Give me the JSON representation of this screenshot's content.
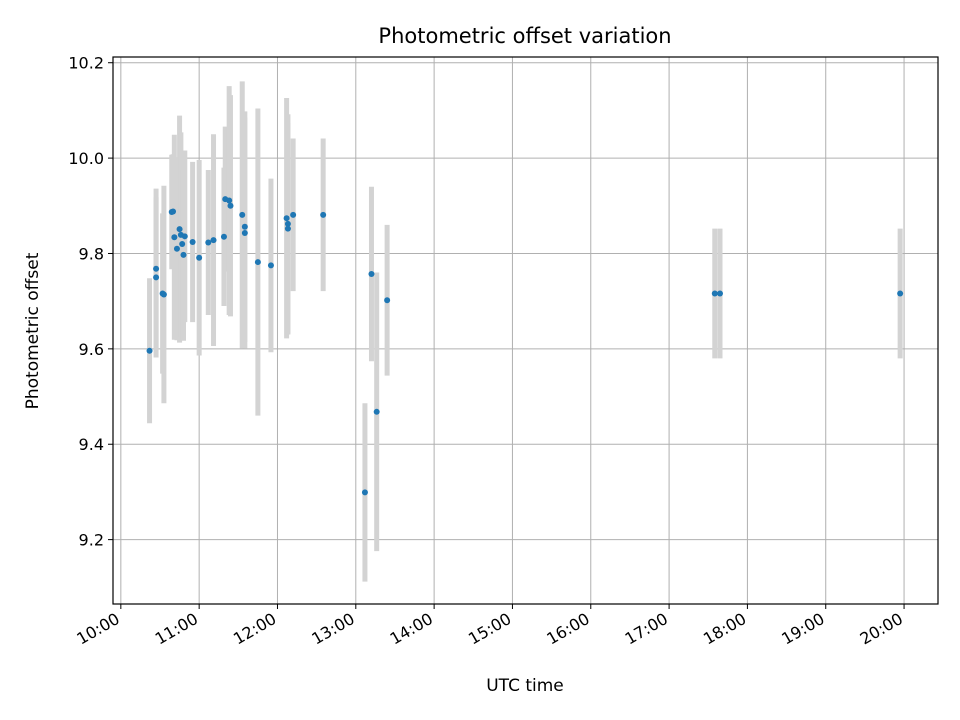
{
  "chart_data": {
    "type": "scatter",
    "title": "Photometric offset variation",
    "xlabel": "UTC time",
    "ylabel": "Photometric offset",
    "xlim": [
      "09:54",
      "20:26"
    ],
    "ylim": [
      9.065,
      10.212
    ],
    "grid": true,
    "x_ticks": [
      "10:00",
      "11:00",
      "12:00",
      "13:00",
      "14:00",
      "15:00",
      "16:00",
      "17:00",
      "18:00",
      "19:00",
      "20:00"
    ],
    "y_ticks": [
      "9.2",
      "9.4",
      "9.6",
      "9.8",
      "10.0",
      "10.2"
    ],
    "marker_color": "#1f77b4",
    "errorbar_color": "#d3d3d3",
    "points": [
      {
        "t": "10:22",
        "y": 9.596,
        "err": 0.152
      },
      {
        "t": "10:27",
        "y": 9.768,
        "err": 0.168
      },
      {
        "t": "10:27",
        "y": 9.75,
        "err": 0.168
      },
      {
        "t": "10:32",
        "y": 9.716,
        "err": 0.168
      },
      {
        "t": "10:33",
        "y": 9.714,
        "err": 0.228
      },
      {
        "t": "10:39",
        "y": 9.887,
        "err": 0.12
      },
      {
        "t": "10:40",
        "y": 9.888,
        "err": 0.12
      },
      {
        "t": "10:41",
        "y": 9.834,
        "err": 0.215
      },
      {
        "t": "10:43",
        "y": 9.81,
        "err": 0.192
      },
      {
        "t": "10:45",
        "y": 9.851,
        "err": 0.238
      },
      {
        "t": "10:46",
        "y": 9.839,
        "err": 0.215
      },
      {
        "t": "10:47",
        "y": 9.82,
        "err": 0.19
      },
      {
        "t": "10:48",
        "y": 9.797,
        "err": 0.18
      },
      {
        "t": "10:49",
        "y": 9.836,
        "err": 0.18
      },
      {
        "t": "10:55",
        "y": 9.824,
        "err": 0.168
      },
      {
        "t": "11:00",
        "y": 9.791,
        "err": 0.205
      },
      {
        "t": "11:07",
        "y": 9.823,
        "err": 0.152
      },
      {
        "t": "11:11",
        "y": 9.828,
        "err": 0.222
      },
      {
        "t": "11:19",
        "y": 9.835,
        "err": 0.145
      },
      {
        "t": "11:20",
        "y": 9.914,
        "err": 0.152
      },
      {
        "t": "11:23",
        "y": 9.911,
        "err": 0.24
      },
      {
        "t": "11:24",
        "y": 9.9,
        "err": 0.232
      },
      {
        "t": "11:33",
        "y": 9.881,
        "err": 0.28
      },
      {
        "t": "11:35",
        "y": 9.856,
        "err": 0.242
      },
      {
        "t": "11:35",
        "y": 9.843,
        "err": 0.242
      },
      {
        "t": "11:45",
        "y": 9.782,
        "err": 0.322
      },
      {
        "t": "11:55",
        "y": 9.775,
        "err": 0.182
      },
      {
        "t": "12:07",
        "y": 9.874,
        "err": 0.252
      },
      {
        "t": "12:08",
        "y": 9.862,
        "err": 0.23
      },
      {
        "t": "12:08",
        "y": 9.852,
        "err": 0.222
      },
      {
        "t": "12:12",
        "y": 9.881,
        "err": 0.16
      },
      {
        "t": "12:35",
        "y": 9.881,
        "err": 0.16
      },
      {
        "t": "13:07",
        "y": 9.299,
        "err": 0.187
      },
      {
        "t": "13:12",
        "y": 9.757,
        "err": 0.183
      },
      {
        "t": "13:16",
        "y": 9.468,
        "err": 0.292
      },
      {
        "t": "13:24",
        "y": 9.702,
        "err": 0.158
      },
      {
        "t": "17:35",
        "y": 9.716,
        "err": 0.136
      },
      {
        "t": "17:39",
        "y": 9.716,
        "err": 0.136
      },
      {
        "t": "19:57",
        "y": 9.716,
        "err": 0.136
      }
    ]
  }
}
